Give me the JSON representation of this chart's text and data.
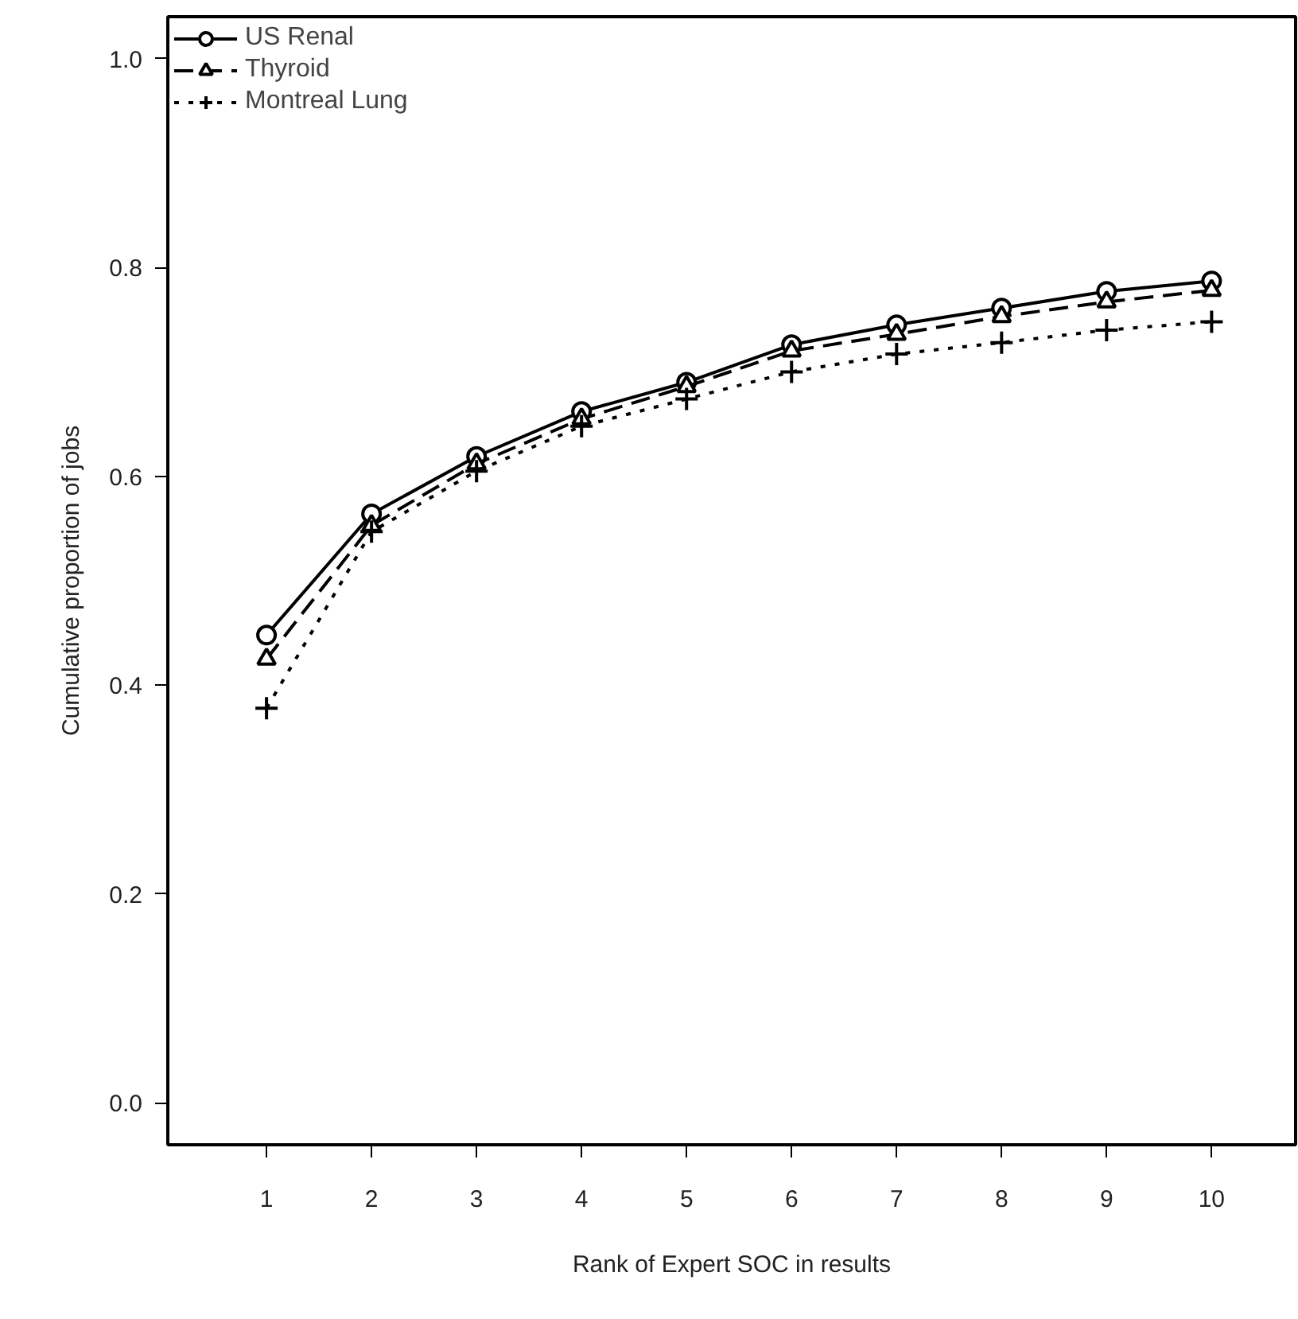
{
  "chart_data": {
    "type": "line",
    "xlabel": "Rank of Expert SOC in results",
    "ylabel": "Cumulative proportion of jobs",
    "x": [
      1,
      2,
      3,
      4,
      5,
      6,
      7,
      8,
      9,
      10
    ],
    "series": [
      {
        "name": "US Renal",
        "color": "#000000",
        "marker": "circle",
        "line_style": "solid",
        "values": [
          0.448,
          0.564,
          0.619,
          0.662,
          0.69,
          0.726,
          0.745,
          0.761,
          0.777,
          0.787
        ]
      },
      {
        "name": "Thyroid",
        "color": "#000000",
        "marker": "triangle",
        "line_style": "dashed",
        "values": [
          0.425,
          0.553,
          0.612,
          0.655,
          0.686,
          0.72,
          0.736,
          0.753,
          0.767,
          0.778
        ]
      },
      {
        "name": "Montreal Lung",
        "color": "#000000",
        "marker": "cross",
        "line_style": "dotted",
        "values": [
          0.378,
          0.547,
          0.605,
          0.648,
          0.674,
          0.7,
          0.717,
          0.728,
          0.74,
          0.748
        ]
      }
    ],
    "xlim": [
      0.06,
      10.8
    ],
    "ylim": [
      -0.04,
      1.04
    ],
    "xticks": [
      1,
      2,
      3,
      4,
      5,
      6,
      7,
      8,
      9,
      10
    ],
    "yticks": [
      {
        "value": 0,
        "label": "0.0"
      },
      {
        "value": 0.2,
        "label": "0.2"
      },
      {
        "value": 0.4,
        "label": "0.4"
      },
      {
        "value": 0.6,
        "label": "0.6"
      },
      {
        "value": 0.8,
        "label": "0.8"
      },
      {
        "value": 1,
        "label": "1.0"
      }
    ],
    "grid": false,
    "legend": "top left"
  }
}
